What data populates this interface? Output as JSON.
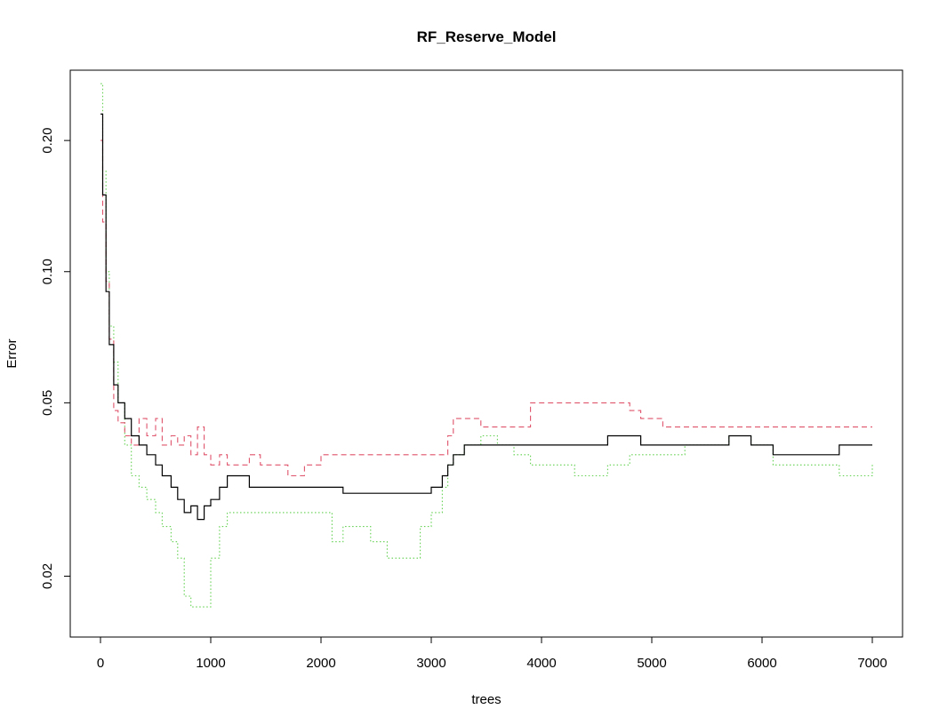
{
  "chart_data": {
    "type": "line",
    "title": "RF_Reserve_Model",
    "xlabel": "trees",
    "ylabel": "Error",
    "xlim": [
      0,
      7000
    ],
    "ylim": [
      0.0145,
      0.29
    ],
    "y_scale": "log",
    "grid": false,
    "legend": "none",
    "x_ticks": [
      {
        "value": 0,
        "label": "0"
      },
      {
        "value": 1000,
        "label": "1000"
      },
      {
        "value": 2000,
        "label": "2000"
      },
      {
        "value": 3000,
        "label": "3000"
      },
      {
        "value": 4000,
        "label": "4000"
      },
      {
        "value": 5000,
        "label": "5000"
      },
      {
        "value": 6000,
        "label": "6000"
      },
      {
        "value": 7000,
        "label": "7000"
      }
    ],
    "y_ticks": [
      {
        "value": 0.02,
        "label": "0.02"
      },
      {
        "value": 0.05,
        "label": "0.05"
      },
      {
        "value": 0.1,
        "label": "0.10"
      },
      {
        "value": 0.2,
        "label": "0.20"
      }
    ],
    "series": [
      {
        "color": "#000000",
        "dash": "solid",
        "points": [
          [
            1,
            0.23
          ],
          [
            20,
            0.15
          ],
          [
            50,
            0.09
          ],
          [
            80,
            0.068
          ],
          [
            120,
            0.055
          ],
          [
            160,
            0.05
          ],
          [
            220,
            0.046
          ],
          [
            280,
            0.042
          ],
          [
            350,
            0.04
          ],
          [
            420,
            0.038
          ],
          [
            500,
            0.036
          ],
          [
            560,
            0.034
          ],
          [
            640,
            0.032
          ],
          [
            700,
            0.03
          ],
          [
            760,
            0.028
          ],
          [
            820,
            0.029
          ],
          [
            880,
            0.027
          ],
          [
            940,
            0.029
          ],
          [
            1000,
            0.03
          ],
          [
            1080,
            0.032
          ],
          [
            1150,
            0.034
          ],
          [
            1250,
            0.034
          ],
          [
            1350,
            0.032
          ],
          [
            1450,
            0.032
          ],
          [
            1550,
            0.032
          ],
          [
            1700,
            0.032
          ],
          [
            1850,
            0.032
          ],
          [
            2000,
            0.032
          ],
          [
            2100,
            0.032
          ],
          [
            2200,
            0.031
          ],
          [
            2300,
            0.031
          ],
          [
            2450,
            0.031
          ],
          [
            2600,
            0.031
          ],
          [
            2750,
            0.031
          ],
          [
            2900,
            0.031
          ],
          [
            3000,
            0.032
          ],
          [
            3100,
            0.034
          ],
          [
            3150,
            0.036
          ],
          [
            3200,
            0.038
          ],
          [
            3300,
            0.04
          ],
          [
            3450,
            0.04
          ],
          [
            3600,
            0.04
          ],
          [
            3750,
            0.04
          ],
          [
            3900,
            0.04
          ],
          [
            4000,
            0.04
          ],
          [
            4150,
            0.04
          ],
          [
            4300,
            0.04
          ],
          [
            4450,
            0.04
          ],
          [
            4600,
            0.042
          ],
          [
            4800,
            0.042
          ],
          [
            4900,
            0.04
          ],
          [
            5100,
            0.04
          ],
          [
            5300,
            0.04
          ],
          [
            5500,
            0.04
          ],
          [
            5700,
            0.042
          ],
          [
            5900,
            0.04
          ],
          [
            6100,
            0.038
          ],
          [
            6300,
            0.038
          ],
          [
            6500,
            0.038
          ],
          [
            6700,
            0.04
          ],
          [
            6900,
            0.04
          ],
          [
            7000,
            0.04
          ]
        ]
      },
      {
        "color": "#DF536B",
        "dash": "dashed",
        "points": [
          [
            1,
            0.2
          ],
          [
            20,
            0.13
          ],
          [
            50,
            0.095
          ],
          [
            80,
            0.07
          ],
          [
            120,
            0.048
          ],
          [
            160,
            0.045
          ],
          [
            220,
            0.042
          ],
          [
            280,
            0.04
          ],
          [
            350,
            0.046
          ],
          [
            420,
            0.042
          ],
          [
            500,
            0.046
          ],
          [
            560,
            0.04
          ],
          [
            640,
            0.042
          ],
          [
            700,
            0.04
          ],
          [
            760,
            0.042
          ],
          [
            820,
            0.038
          ],
          [
            880,
            0.044
          ],
          [
            940,
            0.038
          ],
          [
            1000,
            0.036
          ],
          [
            1080,
            0.038
          ],
          [
            1150,
            0.036
          ],
          [
            1250,
            0.036
          ],
          [
            1350,
            0.038
          ],
          [
            1450,
            0.036
          ],
          [
            1550,
            0.036
          ],
          [
            1700,
            0.034
          ],
          [
            1850,
            0.036
          ],
          [
            2000,
            0.038
          ],
          [
            2100,
            0.038
          ],
          [
            2200,
            0.038
          ],
          [
            2300,
            0.038
          ],
          [
            2450,
            0.038
          ],
          [
            2600,
            0.038
          ],
          [
            2750,
            0.038
          ],
          [
            2900,
            0.038
          ],
          [
            3000,
            0.038
          ],
          [
            3100,
            0.038
          ],
          [
            3150,
            0.042
          ],
          [
            3200,
            0.046
          ],
          [
            3300,
            0.046
          ],
          [
            3450,
            0.044
          ],
          [
            3600,
            0.044
          ],
          [
            3750,
            0.044
          ],
          [
            3900,
            0.05
          ],
          [
            4000,
            0.05
          ],
          [
            4150,
            0.05
          ],
          [
            4300,
            0.05
          ],
          [
            4450,
            0.05
          ],
          [
            4600,
            0.05
          ],
          [
            4800,
            0.048
          ],
          [
            4900,
            0.046
          ],
          [
            5100,
            0.044
          ],
          [
            5300,
            0.044
          ],
          [
            5500,
            0.044
          ],
          [
            5700,
            0.044
          ],
          [
            5900,
            0.044
          ],
          [
            6100,
            0.044
          ],
          [
            6300,
            0.044
          ],
          [
            6500,
            0.044
          ],
          [
            6700,
            0.044
          ],
          [
            6900,
            0.044
          ],
          [
            7000,
            0.044
          ]
        ]
      },
      {
        "color": "#61D04F",
        "dash": "dotted",
        "points": [
          [
            1,
            0.27
          ],
          [
            20,
            0.17
          ],
          [
            50,
            0.1
          ],
          [
            80,
            0.075
          ],
          [
            120,
            0.062
          ],
          [
            160,
            0.05
          ],
          [
            220,
            0.04
          ],
          [
            280,
            0.034
          ],
          [
            350,
            0.032
          ],
          [
            420,
            0.03
          ],
          [
            500,
            0.028
          ],
          [
            560,
            0.026
          ],
          [
            640,
            0.024
          ],
          [
            700,
            0.022
          ],
          [
            760,
            0.018
          ],
          [
            820,
            0.017
          ],
          [
            880,
            0.017
          ],
          [
            940,
            0.017
          ],
          [
            1000,
            0.022
          ],
          [
            1080,
            0.026
          ],
          [
            1150,
            0.028
          ],
          [
            1250,
            0.028
          ],
          [
            1350,
            0.028
          ],
          [
            1450,
            0.028
          ],
          [
            1550,
            0.028
          ],
          [
            1700,
            0.028
          ],
          [
            1850,
            0.028
          ],
          [
            2000,
            0.028
          ],
          [
            2100,
            0.024
          ],
          [
            2200,
            0.026
          ],
          [
            2300,
            0.026
          ],
          [
            2450,
            0.024
          ],
          [
            2600,
            0.022
          ],
          [
            2750,
            0.022
          ],
          [
            2900,
            0.026
          ],
          [
            3000,
            0.028
          ],
          [
            3100,
            0.032
          ],
          [
            3150,
            0.036
          ],
          [
            3200,
            0.038
          ],
          [
            3300,
            0.04
          ],
          [
            3450,
            0.042
          ],
          [
            3600,
            0.04
          ],
          [
            3750,
            0.038
          ],
          [
            3900,
            0.036
          ],
          [
            4000,
            0.036
          ],
          [
            4150,
            0.036
          ],
          [
            4300,
            0.034
          ],
          [
            4450,
            0.034
          ],
          [
            4600,
            0.036
          ],
          [
            4800,
            0.038
          ],
          [
            4900,
            0.038
          ],
          [
            5100,
            0.038
          ],
          [
            5300,
            0.04
          ],
          [
            5500,
            0.04
          ],
          [
            5700,
            0.042
          ],
          [
            5900,
            0.04
          ],
          [
            6100,
            0.036
          ],
          [
            6300,
            0.036
          ],
          [
            6500,
            0.036
          ],
          [
            6700,
            0.034
          ],
          [
            6900,
            0.034
          ],
          [
            7000,
            0.036
          ]
        ]
      }
    ]
  }
}
